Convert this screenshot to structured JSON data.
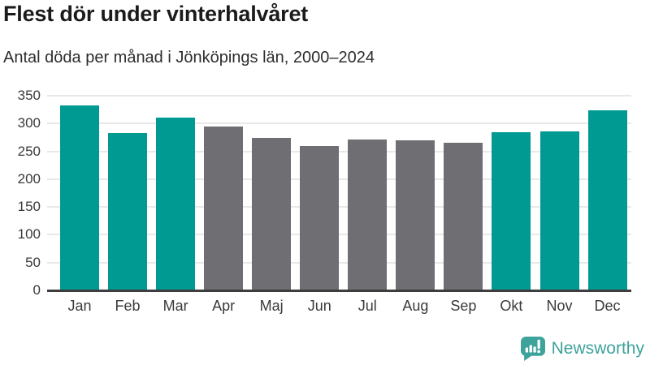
{
  "header": {
    "title": "Flest dör under vinterhalvåret",
    "subtitle": "Antal döda per månad i Jönköpings län, 2000–2024"
  },
  "chart_data": {
    "type": "bar",
    "title": "Flest dör under vinterhalvåret",
    "subtitle": "Antal döda per månad i Jönköpings län, 2000–2024",
    "categories": [
      "Jan",
      "Feb",
      "Mar",
      "Apr",
      "Maj",
      "Jun",
      "Jul",
      "Aug",
      "Sep",
      "Okt",
      "Nov",
      "Dec"
    ],
    "values": [
      331,
      281,
      309,
      293,
      273,
      258,
      270,
      268,
      264,
      283,
      285,
      323
    ],
    "highlighted": [
      true,
      true,
      true,
      false,
      false,
      false,
      false,
      false,
      false,
      true,
      true,
      true
    ],
    "xlabel": "",
    "ylabel": "",
    "ylim": [
      0,
      350
    ],
    "ytick_step": 50,
    "yticks": [
      0,
      50,
      100,
      150,
      200,
      250,
      300,
      350
    ],
    "grid": true,
    "legend": false,
    "colors": {
      "highlight": "#009a93",
      "muted": "#6e6e73",
      "gridline": "#e8e8e8",
      "axis_line": "#3d3d3d",
      "tick_label": "#3a3a3a"
    }
  },
  "footer": {
    "brand": "Newsworthy",
    "brand_color": "#3ea39b",
    "logo_icon": "bar-chart-speech-bubble-icon"
  }
}
